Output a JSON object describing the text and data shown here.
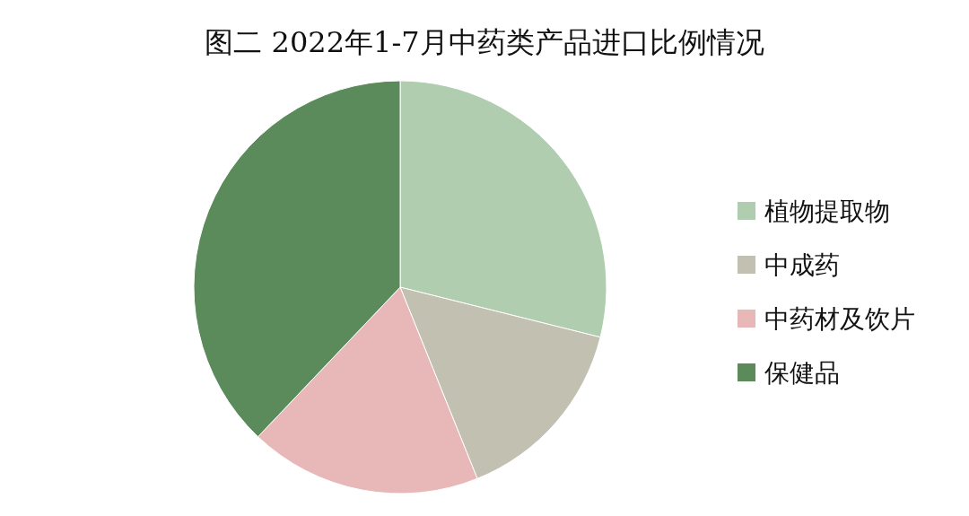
{
  "chart_data": {
    "type": "pie",
    "title": "图二 2022年1-7月中药类产品进口比例情况",
    "categories": [
      "植物提取物",
      "中成药",
      "中药材及饮片",
      "保健品"
    ],
    "values": [
      28.9,
      15.0,
      18.2,
      37.9
    ],
    "colors": [
      "#b0cdb0",
      "#c2c1b1",
      "#e8b8b8",
      "#5b8b5b"
    ],
    "legend": "right"
  }
}
